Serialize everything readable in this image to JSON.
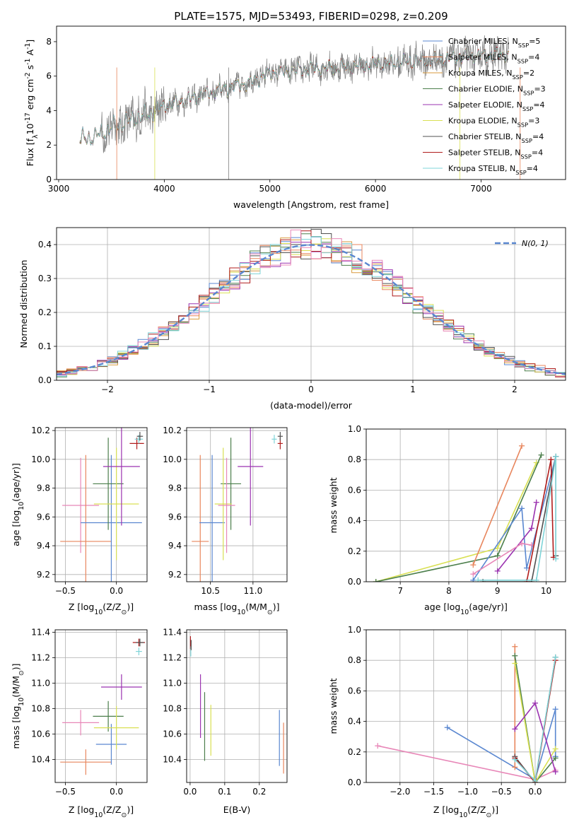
{
  "chart_data": [
    {
      "panel": "spectrum",
      "type": "line",
      "title": "PLATE=1575, MJD=53493, FIBERID=0298, z=0.209",
      "xlabel": "wavelength [Angstrom, rest frame]",
      "ylabel": "Flux [f$_\\lambda$10$^{-17}$ erg cm$^{-2}$ s$^{-1}$ A$^{-1}$]",
      "xlim": [
        2980,
        7800
      ],
      "ylim": [
        0,
        8.9
      ],
      "xticks": [
        "3000",
        "4000",
        "5000",
        "6000",
        "7000"
      ],
      "yticks": [
        "0",
        "2",
        "4",
        "6",
        "8"
      ],
      "grid": false,
      "legend_position": "top-right",
      "data_color": "#808080",
      "legend": [
        {
          "label": "Chabrier MILES, N$_{SSP}$=5",
          "color": "#5a87d0"
        },
        {
          "label": "Salpeter MILES, N$_{SSP}$=4",
          "color": "#e8865d"
        },
        {
          "label": "Kroupa MILES, N$_{SSP}$=2",
          "color": "#d99a3d"
        },
        {
          "label": "Chabrier ELODIE, N$_{SSP}$=3",
          "color": "#4c7f4c"
        },
        {
          "label": "Salpeter ELODIE, N$_{SSP}$=4",
          "color": "#9b33b0"
        },
        {
          "label": "Kroupa ELODIE, N$_{SSP}$=3",
          "color": "#d9e053"
        },
        {
          "label": "Chabrier STELIB, N$_{SSP}$=4",
          "color": "#505050"
        },
        {
          "label": "Salpeter STELIB, N$_{SSP}$=4",
          "color": "#b01c1c"
        },
        {
          "label": "Kroupa STELIB, N$_{SSP}$=4",
          "color": "#7fd4d8"
        }
      ],
      "continuum": [
        [
          3200,
          2.3
        ],
        [
          3350,
          2.5
        ],
        [
          3500,
          3.0
        ],
        [
          3700,
          3.5
        ],
        [
          3900,
          3.9
        ],
        [
          4000,
          4.3
        ],
        [
          4200,
          4.6
        ],
        [
          4500,
          5.2
        ],
        [
          4800,
          5.6
        ],
        [
          5000,
          6.2
        ],
        [
          5300,
          6.4
        ],
        [
          5600,
          6.5
        ],
        [
          5900,
          6.6
        ],
        [
          6200,
          6.8
        ],
        [
          6500,
          6.9
        ],
        [
          6800,
          7.1
        ],
        [
          7000,
          7.2
        ],
        [
          7250,
          7.3
        ]
      ]
    },
    {
      "panel": "residuals",
      "type": "histogram",
      "xlabel": "(data-model)/error",
      "ylabel": "Normed distribution",
      "xlim": [
        -2.5,
        2.5
      ],
      "ylim": [
        0,
        0.45
      ],
      "xticks": [
        "−2",
        "−1",
        "0",
        "1",
        "2"
      ],
      "yticks": [
        "0.0",
        "0.1",
        "0.2",
        "0.3",
        "0.4"
      ],
      "grid": true,
      "legend_position": "top-right",
      "reference": {
        "label": "$\\mathcal{N}(0, 1)$",
        "color": "#5a87d0",
        "style": "dashed"
      },
      "series_colors": [
        "#5a87d0",
        "#e8865d",
        "#d99a3d",
        "#4c7f4c",
        "#9b33b0",
        "#d9e053",
        "#505050",
        "#b01c1c",
        "#7fd4d8",
        "#e887b8"
      ]
    },
    {
      "panel": "age-vs-Z",
      "type": "errorbar",
      "xlabel": "Z [log$_{10}$(Z/Z$_\\odot$)]",
      "ylabel": "age  [log$_{10}$(age/yr)]",
      "xlim": [
        -0.6,
        0.3
      ],
      "ylim": [
        9.15,
        10.22
      ],
      "xticks": [
        "−0.5",
        "0.0"
      ],
      "yticks": [
        "9.2",
        "9.4",
        "9.6",
        "9.8",
        "10.0",
        "10.2"
      ],
      "points": [
        {
          "color": "#e887b8",
          "x": -0.35,
          "xerr": 0.18,
          "y": 9.68,
          "yerr": 0.33
        },
        {
          "color": "#e8865d",
          "x": -0.3,
          "xerr": 0.25,
          "y": 9.43,
          "yerr": 0.6
        },
        {
          "color": "#5a87d0",
          "x": -0.05,
          "xerr": 0.3,
          "y": 9.56,
          "yerr": 0.47
        },
        {
          "color": "#4c7f4c",
          "x": -0.08,
          "xerr": 0.15,
          "y": 9.83,
          "yerr": 0.32
        },
        {
          "color": "#d9e053",
          "x": 0.0,
          "xerr": 0.22,
          "y": 9.69,
          "yerr": 0.39
        },
        {
          "color": "#9b33b0",
          "x": 0.05,
          "xerr": 0.18,
          "y": 9.95,
          "yerr": 0.41
        },
        {
          "color": "#b01c1c",
          "x": 0.2,
          "xerr": 0.07,
          "y": 10.11,
          "yerr": 0.04
        },
        {
          "color": "#7fd4d8",
          "x": 0.22,
          "xerr": 0.04,
          "y": 10.14,
          "yerr": 0.03
        },
        {
          "color": "#505050",
          "x": 0.23,
          "xerr": 0.03,
          "y": 10.16,
          "yerr": 0.03
        }
      ]
    },
    {
      "panel": "age-vs-mass",
      "type": "errorbar",
      "xlabel": "mass [log$_{10}$(M/M$_\\odot$)]",
      "ylabel": "",
      "xlim": [
        10.22,
        11.4
      ],
      "ylim": [
        9.15,
        10.22
      ],
      "xticks": [
        "10.5",
        "11.0"
      ],
      "yticks": [
        "9.2",
        "9.4",
        "9.6",
        "9.8",
        "10.0",
        "10.2"
      ],
      "points": [
        {
          "color": "#e8865d",
          "x": 10.38,
          "xerr": 0.1,
          "y": 9.43,
          "yerr": 0.6
        },
        {
          "color": "#5a87d0",
          "x": 10.52,
          "xerr": 0.15,
          "y": 9.56,
          "yerr": 0.47
        },
        {
          "color": "#4c7f4c",
          "x": 10.74,
          "xerr": 0.12,
          "y": 9.83,
          "yerr": 0.32
        },
        {
          "color": "#d9e053",
          "x": 10.65,
          "xerr": 0.1,
          "y": 9.69,
          "yerr": 0.39
        },
        {
          "color": "#e887b8",
          "x": 10.69,
          "xerr": 0.1,
          "y": 9.68,
          "yerr": 0.33
        },
        {
          "color": "#9b33b0",
          "x": 10.97,
          "xerr": 0.15,
          "y": 9.95,
          "yerr": 0.41
        },
        {
          "color": "#b01c1c",
          "x": 11.32,
          "xerr": 0.03,
          "y": 10.11,
          "yerr": 0.04
        },
        {
          "color": "#7fd4d8",
          "x": 11.25,
          "xerr": 0.03,
          "y": 10.14,
          "yerr": 0.03
        },
        {
          "color": "#505050",
          "x": 11.32,
          "xerr": 0.03,
          "y": 10.16,
          "yerr": 0.03
        }
      ]
    },
    {
      "panel": "weight-vs-age",
      "type": "line",
      "xlabel": "age  [log$_{10}$(age/yr)]",
      "ylabel": "mass weight",
      "xlim": [
        6.3,
        10.4
      ],
      "ylim": [
        0.0,
        1.0
      ],
      "xticks": [
        "7",
        "8",
        "9",
        "10"
      ],
      "yticks": [
        "0.0",
        "0.2",
        "0.4",
        "0.6",
        "0.8",
        "1.0"
      ],
      "grid": true,
      "series": [
        {
          "color": "#d9e053",
          "points": [
            [
              6.5,
              0.0
            ],
            [
              9.0,
              0.22
            ],
            [
              9.8,
              0.78
            ]
          ]
        },
        {
          "color": "#4c7f4c",
          "points": [
            [
              6.5,
              0.0
            ],
            [
              9.0,
              0.17
            ],
            [
              9.9,
              0.83
            ]
          ]
        },
        {
          "color": "#e8865d",
          "points": [
            [
              8.5,
              0.11
            ],
            [
              9.5,
              0.89
            ]
          ]
        },
        {
          "color": "#5a87d0",
          "points": [
            [
              8.5,
              0.01
            ],
            [
              9.5,
              0.48
            ],
            [
              9.6,
              0.09
            ],
            [
              10.2,
              0.82
            ]
          ]
        },
        {
          "color": "#9b33b0",
          "points": [
            [
              9.0,
              0.07
            ],
            [
              9.7,
              0.35
            ],
            [
              9.8,
              0.52
            ]
          ]
        },
        {
          "color": "#e887b8",
          "points": [
            [
              8.5,
              0.05
            ],
            [
              9.5,
              0.25
            ],
            [
              9.7,
              0.24
            ]
          ]
        },
        {
          "color": "#505050",
          "points": [
            [
              8.7,
              0.0
            ],
            [
              9.7,
              0.0
            ],
            [
              10.2,
              0.82
            ],
            [
              10.2,
              0.17
            ]
          ]
        },
        {
          "color": "#b01c1c",
          "points": [
            [
              9.6,
              0.0
            ],
            [
              10.1,
              0.8
            ],
            [
              10.15,
              0.16
            ]
          ]
        },
        {
          "color": "#7fd4d8",
          "points": [
            [
              8.6,
              0.01
            ],
            [
              9.8,
              0.01
            ],
            [
              10.2,
              0.82
            ],
            [
              10.2,
              0.15
            ]
          ]
        }
      ]
    },
    {
      "panel": "mass-vs-Z",
      "type": "errorbar",
      "xlabel": "Z [log$_{10}$(Z/Z$_\\odot$)]",
      "ylabel": "mass [log$_{10}$(M/M$_\\odot$)]",
      "xlim": [
        -0.6,
        0.3
      ],
      "ylim": [
        10.22,
        11.42
      ],
      "xticks": [
        "−0.5",
        "0.0"
      ],
      "yticks": [
        "10.4",
        "10.6",
        "10.8",
        "11.0",
        "11.2",
        "11.4"
      ],
      "points": [
        {
          "color": "#e887b8",
          "x": -0.35,
          "xerr": 0.18,
          "y": 10.69,
          "yerr": 0.1
        },
        {
          "color": "#e8865d",
          "x": -0.3,
          "xerr": 0.25,
          "y": 10.38,
          "yerr": 0.1
        },
        {
          "color": "#5a87d0",
          "x": -0.05,
          "xerr": 0.15,
          "y": 10.52,
          "yerr": 0.16
        },
        {
          "color": "#4c7f4c",
          "x": -0.08,
          "xerr": 0.15,
          "y": 10.74,
          "yerr": 0.12
        },
        {
          "color": "#d9e053",
          "x": 0.0,
          "xerr": 0.22,
          "y": 10.65,
          "yerr": 0.17
        },
        {
          "color": "#9b33b0",
          "x": 0.05,
          "xerr": 0.2,
          "y": 10.97,
          "yerr": 0.1
        },
        {
          "color": "#b01c1c",
          "x": 0.22,
          "xerr": 0.06,
          "y": 11.32,
          "yerr": 0.03
        },
        {
          "color": "#7fd4d8",
          "x": 0.22,
          "xerr": 0.03,
          "y": 11.25,
          "yerr": 0.03
        },
        {
          "color": "#505050",
          "x": 0.23,
          "xerr": 0.04,
          "y": 11.32,
          "yerr": 0.03
        }
      ]
    },
    {
      "panel": "mass-vs-EBV",
      "type": "errorbar",
      "xlabel": "E(B-V)",
      "ylabel": "",
      "xlim": [
        -0.01,
        0.28
      ],
      "ylim": [
        10.22,
        11.42
      ],
      "xticks": [
        "0.0",
        "0.1",
        "0.2"
      ],
      "yticks": [
        "10.4",
        "10.6",
        "10.8",
        "11.0",
        "11.2",
        "11.4"
      ],
      "points": [
        {
          "color": "#b01c1c",
          "x": 0.001,
          "y": 11.32,
          "yerr": 0.05
        },
        {
          "color": "#7fd4d8",
          "x": 0.002,
          "y": 11.25,
          "yerr": 0.04
        },
        {
          "color": "#505050",
          "x": 0.003,
          "y": 11.3,
          "yerr": 0.04
        },
        {
          "color": "#9b33b0",
          "x": 0.03,
          "y": 10.82,
          "yerr": 0.25
        },
        {
          "color": "#4c7f4c",
          "x": 0.042,
          "y": 10.66,
          "yerr": 0.27
        },
        {
          "color": "#d9e053",
          "x": 0.06,
          "y": 10.63,
          "yerr": 0.2
        },
        {
          "color": "#5a87d0",
          "x": 0.258,
          "y": 10.57,
          "yerr": 0.22
        },
        {
          "color": "#e8865d",
          "x": 0.27,
          "y": 10.49,
          "yerr": 0.2
        }
      ]
    },
    {
      "panel": "weight-vs-Z",
      "type": "line",
      "xlabel": "Z [log$_{10}$(Z/Z$_\\odot$)]",
      "ylabel": "mass weight",
      "xlim": [
        -2.5,
        0.45
      ],
      "ylim": [
        0.0,
        1.0
      ],
      "xticks": [
        "−2.0",
        "−1.5",
        "−1.0",
        "−0.5",
        "0.0"
      ],
      "yticks": [
        "0.0",
        "0.2",
        "0.4",
        "0.6",
        "0.8",
        "1.0"
      ],
      "grid": true,
      "series": [
        {
          "color": "#e887b8",
          "points": [
            [
              -2.33,
              0.24
            ],
            [
              0.0,
              0.02
            ],
            [
              0.3,
              0.08
            ]
          ]
        },
        {
          "color": "#5a87d0",
          "points": [
            [
              -1.3,
              0.36
            ],
            [
              0.0,
              0.02
            ],
            [
              0.3,
              0.48
            ],
            [
              0.3,
              0.17
            ]
          ]
        },
        {
          "color": "#e8865d",
          "points": [
            [
              -0.3,
              0.89
            ],
            [
              -0.3,
              0.1
            ]
          ]
        },
        {
          "color": "#4c7f4c",
          "points": [
            [
              -0.3,
              0.83
            ],
            [
              0.0,
              0.0
            ],
            [
              0.3,
              0.16
            ]
          ]
        },
        {
          "color": "#d9e053",
          "points": [
            [
              -0.3,
              0.78
            ],
            [
              0.0,
              0.0
            ],
            [
              0.3,
              0.22
            ]
          ]
        },
        {
          "color": "#9b33b0",
          "points": [
            [
              -0.3,
              0.35
            ],
            [
              0.0,
              0.52
            ],
            [
              0.3,
              0.07
            ]
          ]
        },
        {
          "color": "#505050",
          "points": [
            [
              -0.3,
              0.17
            ],
            [
              0.0,
              0.0
            ],
            [
              0.3,
              0.82
            ]
          ]
        },
        {
          "color": "#b01c1c",
          "points": [
            [
              -0.3,
              0.16
            ],
            [
              0.0,
              0.0
            ],
            [
              0.3,
              0.8
            ]
          ]
        },
        {
          "color": "#7fd4d8",
          "points": [
            [
              -0.3,
              0.15
            ],
            [
              0.0,
              0.01
            ],
            [
              0.3,
              0.82
            ]
          ]
        }
      ]
    }
  ]
}
